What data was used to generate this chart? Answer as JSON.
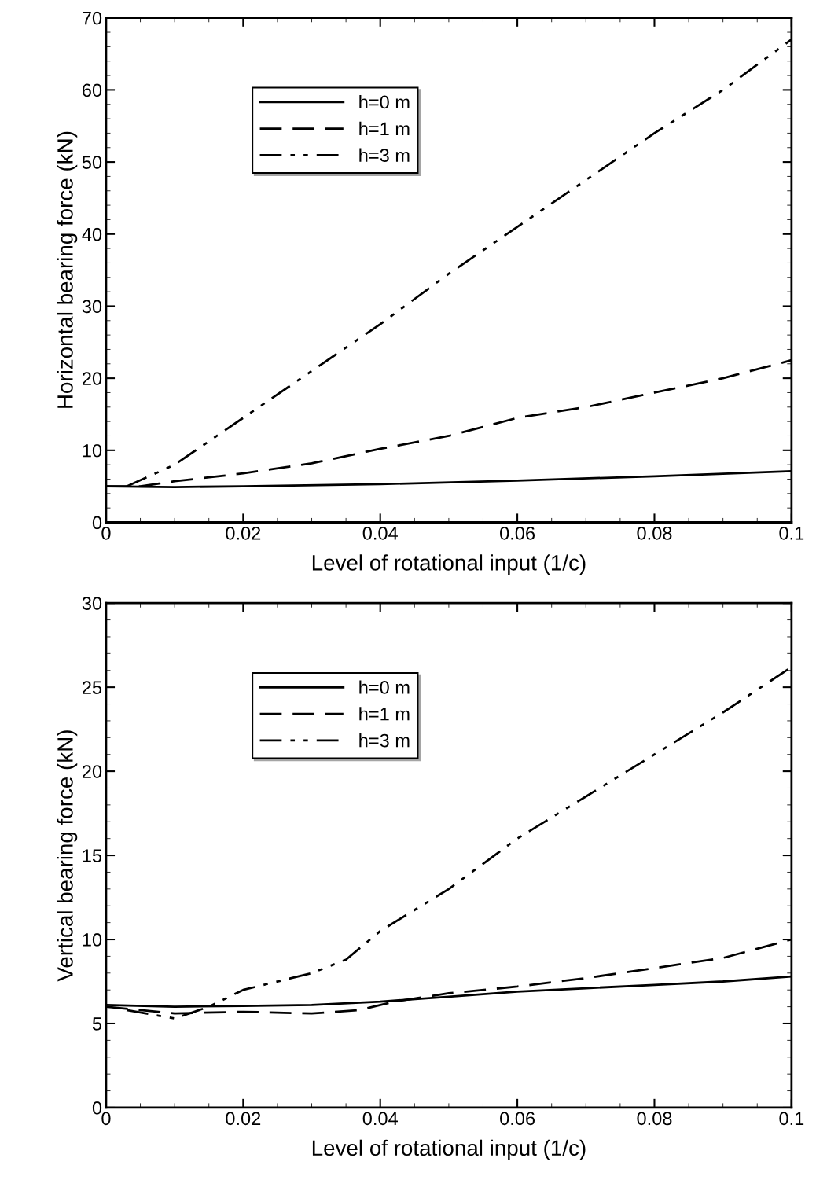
{
  "chart_data": [
    {
      "type": "line",
      "xlabel": "Level of rotational input (1/c)",
      "ylabel": "Horizontal bearing force (kN)",
      "xlim": [
        0,
        0.1
      ],
      "ylim": [
        0,
        70
      ],
      "xticks": [
        0,
        0.02,
        0.04,
        0.06,
        0.08,
        0.1
      ],
      "yticks": [
        0,
        10,
        20,
        30,
        40,
        50,
        60,
        70
      ],
      "grid": false,
      "legend": "top left",
      "series": [
        {
          "name": "h=0 m",
          "color": "#000000",
          "line_style": "solid",
          "x": [
            0,
            0.01,
            0.02,
            0.04,
            0.06,
            0.08,
            0.1
          ],
          "values": [
            5,
            4.9,
            5,
            5.3,
            5.8,
            6.4,
            7.1
          ]
        },
        {
          "name": "h=1 m",
          "color": "#000000",
          "line_style": "dashed",
          "x": [
            0,
            0.005,
            0.01,
            0.02,
            0.03,
            0.04,
            0.05,
            0.06,
            0.07,
            0.08,
            0.09,
            0.1
          ],
          "values": [
            5,
            5,
            5.7,
            6.8,
            8.2,
            10.2,
            12,
            14.5,
            16,
            18,
            20,
            22.5
          ]
        },
        {
          "name": "h=3 m",
          "color": "#000000",
          "line_style": "dashdot",
          "x": [
            0.003,
            0.01,
            0.02,
            0.03,
            0.04,
            0.05,
            0.06,
            0.07,
            0.08,
            0.09,
            0.1
          ],
          "values": [
            5,
            8,
            14.5,
            21,
            27.5,
            34.5,
            41,
            47.5,
            54,
            60,
            67
          ]
        }
      ]
    },
    {
      "type": "line",
      "xlabel": "Level of rotational input (1/c)",
      "ylabel": "Vertical bearing force (kN)",
      "xlim": [
        0,
        0.1
      ],
      "ylim": [
        0,
        30
      ],
      "xticks": [
        0,
        0.02,
        0.04,
        0.06,
        0.08,
        0.1
      ],
      "yticks": [
        0,
        5,
        10,
        15,
        20,
        25,
        30
      ],
      "grid": false,
      "legend": "top left",
      "series": [
        {
          "name": "h=0 m",
          "color": "#000000",
          "line_style": "solid",
          "x": [
            0,
            0.01,
            0.02,
            0.03,
            0.04,
            0.05,
            0.06,
            0.07,
            0.08,
            0.09,
            0.1
          ],
          "values": [
            6.1,
            6,
            6.05,
            6.1,
            6.3,
            6.6,
            6.9,
            7.1,
            7.3,
            7.5,
            7.8
          ]
        },
        {
          "name": "h=1 m",
          "color": "#000000",
          "line_style": "dashed",
          "x": [
            0,
            0.01,
            0.02,
            0.03,
            0.037,
            0.042,
            0.05,
            0.06,
            0.07,
            0.08,
            0.09,
            0.1
          ],
          "values": [
            6,
            5.6,
            5.7,
            5.6,
            5.8,
            6.3,
            6.8,
            7.2,
            7.7,
            8.3,
            8.9,
            10
          ]
        },
        {
          "name": "h=3 m",
          "color": "#000000",
          "line_style": "dashdot",
          "x": [
            0.003,
            0.01,
            0.015,
            0.02,
            0.03,
            0.035,
            0.04,
            0.05,
            0.06,
            0.07,
            0.08,
            0.09,
            0.1
          ],
          "values": [
            5.8,
            5.3,
            6,
            7,
            8,
            8.8,
            10.5,
            13,
            16,
            18.5,
            21,
            23.5,
            26.2
          ]
        }
      ]
    }
  ]
}
